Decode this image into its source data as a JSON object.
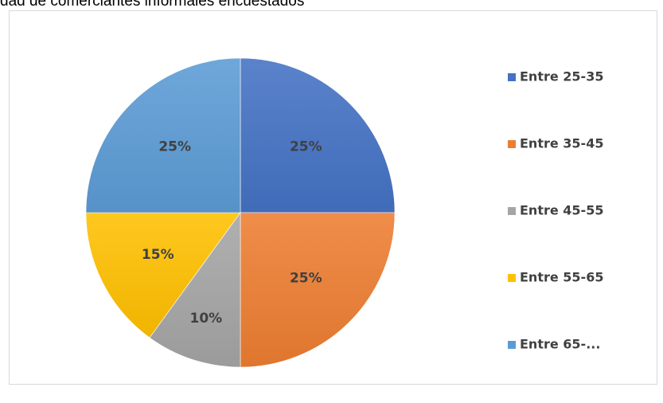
{
  "caption": "dad de comerciantes informales encuestados",
  "chart_data": {
    "type": "pie",
    "title": "",
    "categories": [
      "Entre 25-35",
      "Entre 35-45",
      "Entre 45-55",
      "Entre 55-65",
      "Entre 65-..."
    ],
    "values": [
      25,
      25,
      10,
      15,
      25
    ],
    "data_labels": [
      "25%",
      "25%",
      "10%",
      "15%",
      "25%"
    ],
    "colors": [
      "#4472c4",
      "#ed7d31",
      "#a5a5a5",
      "#ffc000",
      "#5b9bd5"
    ],
    "legend_placement": "right",
    "start_angle": "12 o'clock",
    "direction": "clockwise"
  }
}
